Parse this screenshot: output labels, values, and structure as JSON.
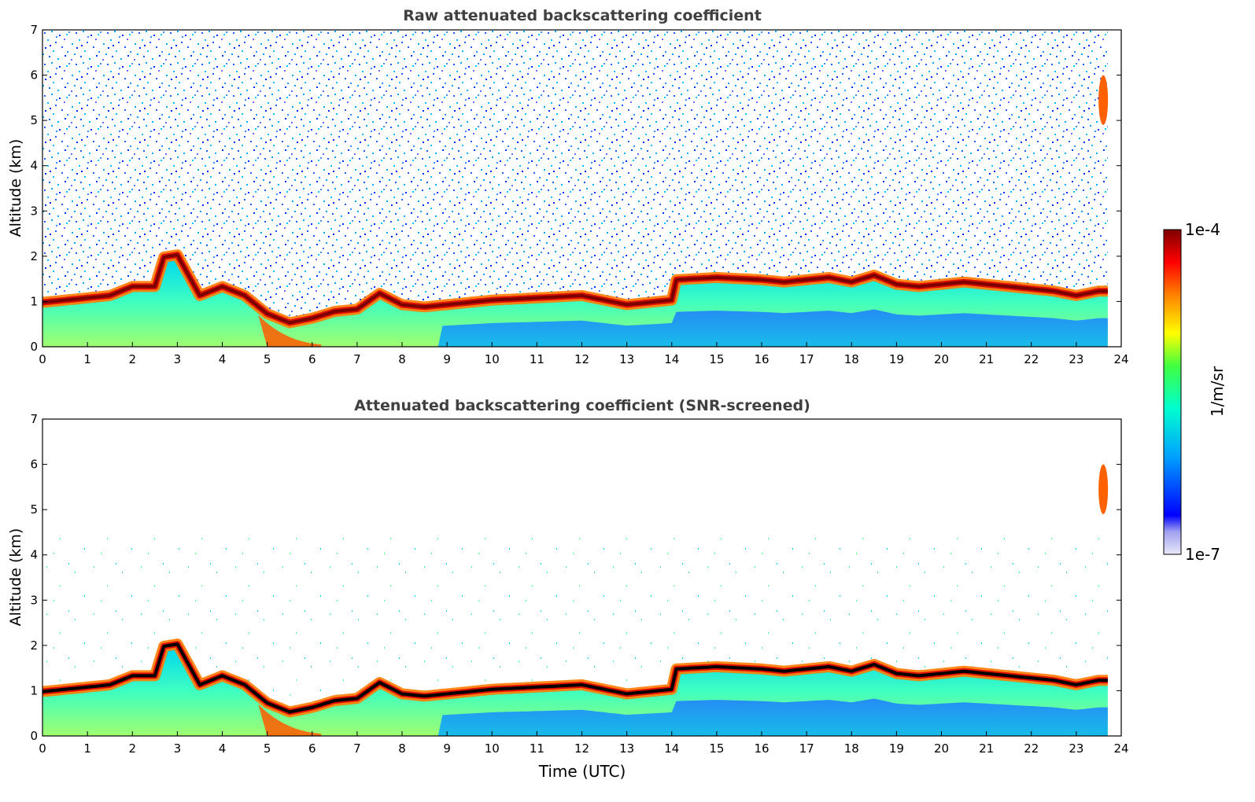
{
  "chart_data": [
    {
      "type": "heatmap",
      "title": "Raw attenuated backscattering coefficient",
      "ylabel": "Altitude (km)",
      "xlabel": "",
      "xlim": [
        0,
        24
      ],
      "ylim": [
        0,
        7
      ],
      "xticks": [
        "0",
        "1",
        "2",
        "3",
        "4",
        "5",
        "6",
        "7",
        "8",
        "9",
        "10",
        "11",
        "12",
        "13",
        "14",
        "15",
        "16",
        "17",
        "18",
        "19",
        "20",
        "21",
        "22",
        "23",
        "24"
      ],
      "yticks": [
        "0",
        "1",
        "2",
        "3",
        "4",
        "5",
        "6",
        "7"
      ],
      "data_end_time": 23.7,
      "noise_top_km": 7,
      "cloud_layer": {
        "time_utc": [
          0,
          0.5,
          1,
          1.5,
          2,
          2.5,
          2.7,
          3,
          3.5,
          4,
          4.5,
          5,
          5.5,
          6,
          6.5,
          7,
          7.5,
          8,
          8.5,
          9,
          9.5,
          10,
          11,
          12,
          12.5,
          13,
          13.5,
          14,
          14.1,
          15,
          16,
          16.5,
          17,
          17.5,
          18,
          18.5,
          19,
          19.5,
          20,
          20.5,
          21,
          21.5,
          22,
          22.5,
          23,
          23.5
        ],
        "base_km": [
          0.9,
          0.95,
          1.0,
          1.05,
          1.25,
          1.25,
          1.9,
          1.95,
          1.05,
          1.25,
          1.05,
          0.65,
          0.45,
          0.55,
          0.7,
          0.75,
          1.1,
          0.85,
          0.8,
          0.85,
          0.9,
          0.95,
          1.0,
          1.05,
          0.95,
          0.85,
          0.9,
          0.95,
          1.4,
          1.45,
          1.4,
          1.35,
          1.4,
          1.45,
          1.35,
          1.5,
          1.3,
          1.25,
          1.3,
          1.35,
          1.3,
          1.25,
          1.2,
          1.15,
          1.05,
          1.15
        ]
      },
      "elevated_aerosol": {
        "time_utc": 23.6,
        "altitude_km": [
          4.9,
          6.0
        ]
      }
    },
    {
      "type": "heatmap",
      "title": "Attenuated backscattering coefficient (SNR-screened)",
      "ylabel": "Altitude (km)",
      "xlabel": "Time (UTC)",
      "xlim": [
        0,
        24
      ],
      "ylim": [
        0,
        7
      ],
      "xticks": [
        "0",
        "1",
        "2",
        "3",
        "4",
        "5",
        "6",
        "7",
        "8",
        "9",
        "10",
        "11",
        "12",
        "13",
        "14",
        "15",
        "16",
        "17",
        "18",
        "19",
        "20",
        "21",
        "22",
        "23",
        "24"
      ],
      "yticks": [
        "0",
        "1",
        "2",
        "3",
        "4",
        "5",
        "6",
        "7"
      ],
      "data_end_time": 23.7,
      "noise_top_km": 4.5,
      "cloud_layer": {
        "time_utc": [
          0,
          0.5,
          1,
          1.5,
          2,
          2.5,
          2.7,
          3,
          3.5,
          4,
          4.5,
          5,
          5.5,
          6,
          6.5,
          7,
          7.5,
          8,
          8.5,
          9,
          9.5,
          10,
          11,
          12,
          12.5,
          13,
          13.5,
          14,
          14.1,
          15,
          16,
          16.5,
          17,
          17.5,
          18,
          18.5,
          19,
          19.5,
          20,
          20.5,
          21,
          21.5,
          22,
          22.5,
          23,
          23.5
        ],
        "base_km": [
          0.9,
          0.95,
          1.0,
          1.05,
          1.25,
          1.25,
          1.9,
          1.95,
          1.05,
          1.25,
          1.05,
          0.65,
          0.45,
          0.55,
          0.7,
          0.75,
          1.1,
          0.85,
          0.8,
          0.85,
          0.9,
          0.95,
          1.0,
          1.05,
          0.95,
          0.85,
          0.9,
          0.95,
          1.4,
          1.45,
          1.4,
          1.35,
          1.4,
          1.45,
          1.35,
          1.5,
          1.3,
          1.25,
          1.3,
          1.35,
          1.3,
          1.25,
          1.2,
          1.15,
          1.05,
          1.15
        ]
      },
      "elevated_aerosol": {
        "time_utc": 23.6,
        "altitude_km": [
          4.9,
          6.0
        ]
      }
    }
  ],
  "colorbar": {
    "label": "1/m/sr",
    "min_label": "1e-7",
    "max_label": "1e-4",
    "scale": "log",
    "colors": [
      "#e8e8f8",
      "#0000ff",
      "#00a0ff",
      "#00ffd0",
      "#40ff40",
      "#ffff00",
      "#ff8000",
      "#ff0000",
      "#800000"
    ]
  }
}
